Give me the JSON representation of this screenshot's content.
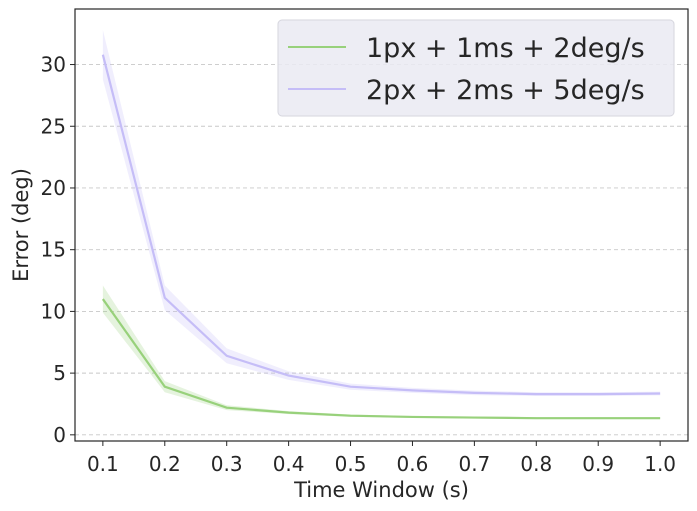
{
  "chart_data": {
    "type": "line",
    "xlabel": "Time Window (s)",
    "ylabel": "Error (deg)",
    "x": [
      0.1,
      0.2,
      0.3,
      0.4,
      0.5,
      0.6,
      0.7,
      0.8,
      0.9,
      1.0
    ],
    "x_ticks": [
      "0.1",
      "0.2",
      "0.3",
      "0.4",
      "0.5",
      "0.6",
      "0.7",
      "0.8",
      "0.9",
      "1.0"
    ],
    "y_ticks": [
      "0",
      "5",
      "10",
      "15",
      "20",
      "25",
      "30"
    ],
    "xlim": [
      0.055,
      1.045
    ],
    "ylim": [
      -0.5,
      34.5
    ],
    "grid": "horizontal dashed",
    "legend_position": "top-right",
    "series": [
      {
        "name": "1px + 1ms + 2deg/s",
        "color": "#98d17b",
        "values": [
          11.0,
          3.9,
          2.2,
          1.8,
          1.55,
          1.45,
          1.4,
          1.35,
          1.35,
          1.35
        ],
        "band_halfwidth": [
          1.1,
          0.45,
          0.2,
          0.12,
          0.1,
          0.08,
          0.08,
          0.08,
          0.08,
          0.08
        ]
      },
      {
        "name": "2px + 2ms + 5deg/s",
        "color": "#c5bdf7",
        "values": [
          30.8,
          11.1,
          6.4,
          4.8,
          3.9,
          3.6,
          3.4,
          3.3,
          3.3,
          3.35
        ],
        "band_halfwidth": [
          2.0,
          1.0,
          0.6,
          0.35,
          0.25,
          0.2,
          0.18,
          0.15,
          0.15,
          0.15
        ]
      }
    ]
  }
}
